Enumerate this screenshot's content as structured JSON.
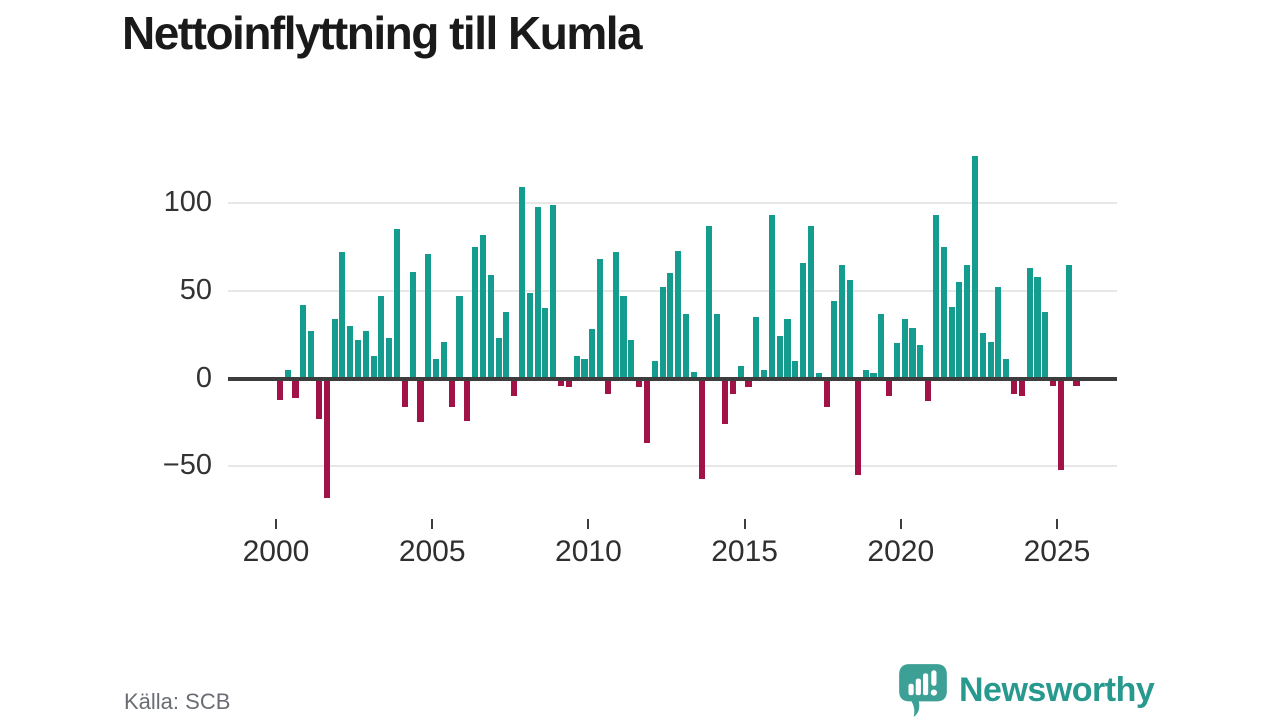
{
  "title": "Nettoinflyttning till Kumla",
  "source": "Källa: SCB",
  "brand": {
    "name": "Newsworthy",
    "icon": "speech-bubble-bar-chart-icon"
  },
  "colors": {
    "positive": "#149c8e",
    "negative": "#a11246",
    "grid": "#e7e7e7",
    "zero_line": "#3d3d3d",
    "title_text": "#1a1a1a",
    "axis_text": "#2f2f2f",
    "y_axis_text": "#333333",
    "source_text": "#6a6d73",
    "brand_teal": "#27998e",
    "logo_bubble": "#3da096",
    "background": "#ffffff"
  },
  "chart_data": {
    "type": "bar",
    "title": "Nettoinflyttning till Kumla",
    "frequency": "quarterly",
    "x_start": {
      "year": 2000,
      "quarter": 1
    },
    "x_end": {
      "year": 2025,
      "quarter": 3
    },
    "values": [
      -12,
      5,
      -11,
      42,
      27,
      -23,
      -68,
      34,
      72,
      30,
      22,
      27,
      13,
      47,
      23,
      85,
      -16,
      61,
      -25,
      71,
      11,
      21,
      -16,
      47,
      -24,
      75,
      82,
      59,
      23,
      38,
      -10,
      109,
      49,
      98,
      40,
      99,
      -4,
      -5,
      13,
      11,
      28,
      68,
      -9,
      72,
      47,
      22,
      -5,
      -37,
      10,
      52,
      60,
      73,
      37,
      4,
      -57,
      87,
      37,
      -26,
      -9,
      7,
      -5,
      35,
      5,
      93,
      24,
      34,
      10,
      66,
      87,
      3,
      -16,
      44,
      65,
      56,
      -55,
      5,
      3,
      37,
      -10,
      20,
      34,
      29,
      19,
      -13,
      93,
      75,
      41,
      55,
      65,
      127,
      26,
      21,
      52,
      11,
      -9,
      -10,
      63,
      58,
      38,
      -4,
      -52,
      65,
      -4
    ],
    "y_ticks": [
      100,
      50,
      0,
      -50
    ],
    "y_tick_labels": [
      "100",
      "50",
      "0",
      "−50"
    ],
    "x_tick_years": [
      2000,
      2005,
      2010,
      2015,
      2020,
      2025
    ],
    "x_tick_labels": [
      "2000",
      "2005",
      "2010",
      "2015",
      "2020",
      "2025"
    ],
    "ylim": [
      -75,
      135
    ],
    "grid": "horizontal",
    "legend": "none",
    "positive_color": "#149c8e",
    "negative_color": "#a11246"
  }
}
